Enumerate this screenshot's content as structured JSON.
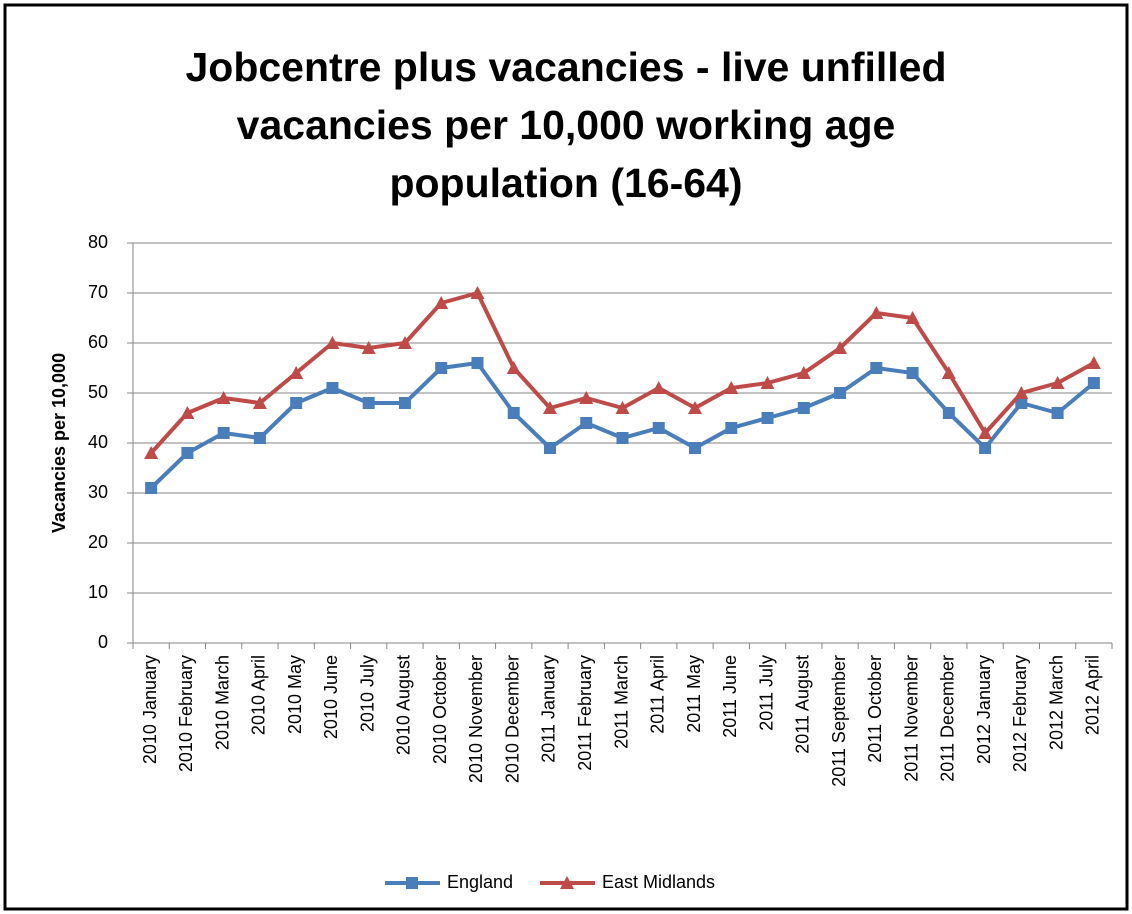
{
  "chart_data": {
    "type": "line",
    "title": "Jobcentre plus vacancies - live unfilled vacancies per 10,000 working age population (16-64)",
    "y_label": "Vacancies per 10,000",
    "categories": [
      "2010 January",
      "2010 February",
      "2010 March",
      "2010 April",
      "2010 May",
      "2010 June",
      "2010 July",
      "2010 August",
      "2010 October",
      "2010 November",
      "2010 December",
      "2011 January",
      "2011 February",
      "2011 March",
      "2011 April",
      "2011 May",
      "2011 June",
      "2011 July",
      "2011 August",
      "2011 September",
      "2011 October",
      "2011 November",
      "2011 December",
      "2012 January",
      "2012 February",
      "2012 March",
      "2012 April"
    ],
    "series": [
      {
        "name": "England",
        "color": "#4a7ebb",
        "marker": "square",
        "values": [
          31,
          38,
          42,
          41,
          48,
          51,
          48,
          48,
          55,
          56,
          46,
          39,
          44,
          41,
          43,
          39,
          43,
          45,
          47,
          50,
          55,
          54,
          46,
          39,
          48,
          46,
          52
        ]
      },
      {
        "name": "East Midlands",
        "color": "#be4b48",
        "marker": "triangle",
        "values": [
          38,
          46,
          49,
          48,
          54,
          60,
          59,
          60,
          68,
          70,
          55,
          47,
          49,
          47,
          51,
          47,
          51,
          52,
          54,
          59,
          66,
          65,
          54,
          42,
          50,
          52,
          56
        ]
      }
    ],
    "ylim": [
      0,
      80
    ],
    "yticks": [
      0,
      10,
      20,
      30,
      40,
      50,
      60,
      70,
      80
    ],
    "grid": true,
    "legend": "bottom"
  }
}
